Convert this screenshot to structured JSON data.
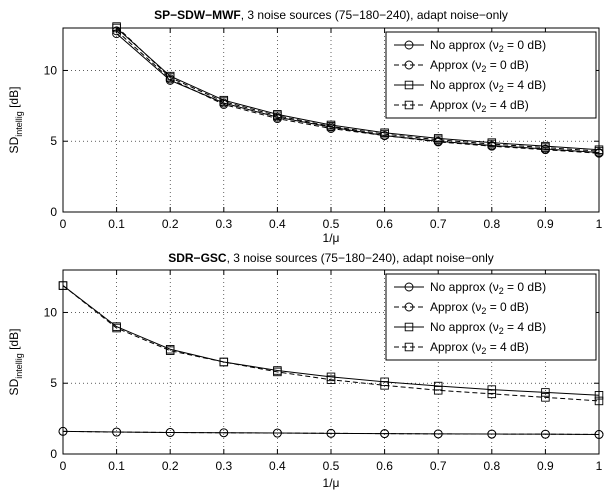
{
  "chart_data": [
    {
      "type": "line",
      "title_bold": "SP−SDW−MWF",
      "title_rest": ", 3 noise sources (75−180−240), adapt noise−only",
      "xlabel": "1/μ",
      "ylabel_main": "SD",
      "ylabel_sub": "intellig",
      "ylabel_unit": " [dB]",
      "xlim": [
        0,
        1
      ],
      "ylim": [
        0,
        13
      ],
      "xticks": [
        0,
        0.1,
        0.2,
        0.3,
        0.4,
        0.5,
        0.6,
        0.7,
        0.8,
        0.9,
        1
      ],
      "xtick_labels": [
        "0",
        "0.1",
        "0.2",
        "0.3",
        "0.4",
        "0.5",
        "0.6",
        "0.7",
        "0.8",
        "0.9",
        "1"
      ],
      "yticks": [
        0,
        5,
        10
      ],
      "ytick_labels": [
        "0",
        "5",
        "10"
      ],
      "grid": true,
      "legend_position": "top-right",
      "x": [
        0.1,
        0.2,
        0.3,
        0.4,
        0.5,
        0.6,
        0.7,
        0.8,
        0.9,
        1.0
      ],
      "series": [
        {
          "name_pre": "No approx (ν",
          "name_sub": "2",
          "name_post": " = 0 dB)",
          "marker": "circle",
          "dash": false,
          "values": [
            12.6,
            9.3,
            7.7,
            6.7,
            6.0,
            5.4,
            5.0,
            4.7,
            4.45,
            4.2
          ]
        },
        {
          "name_pre": "Approx (ν",
          "name_sub": "2",
          "name_post": " = 0 dB)",
          "marker": "circle",
          "dash": true,
          "values": [
            12.8,
            9.4,
            7.6,
            6.6,
            5.9,
            5.4,
            4.95,
            4.65,
            4.4,
            4.15
          ]
        },
        {
          "name_pre": "No approx (ν",
          "name_sub": "2",
          "name_post": " = 4 dB)",
          "marker": "square",
          "dash": false,
          "values": [
            13.0,
            9.6,
            7.9,
            6.9,
            6.15,
            5.6,
            5.2,
            4.9,
            4.65,
            4.4
          ]
        },
        {
          "name_pre": "Approx (ν",
          "name_sub": "2",
          "name_post": " = 4 dB)",
          "marker": "square",
          "dash": true,
          "values": [
            13.1,
            9.5,
            7.8,
            6.8,
            6.05,
            5.5,
            5.1,
            4.8,
            4.55,
            4.3
          ]
        }
      ]
    },
    {
      "type": "line",
      "title_bold": "SDR−GSC",
      "title_rest": ", 3 noise sources (75−180−240), adapt noise−only",
      "xlabel": "1/μ",
      "ylabel_main": "SD",
      "ylabel_sub": "intellig",
      "ylabel_unit": " [dB]",
      "xlim": [
        0,
        1
      ],
      "ylim": [
        0,
        13
      ],
      "xticks": [
        0,
        0.1,
        0.2,
        0.3,
        0.4,
        0.5,
        0.6,
        0.7,
        0.8,
        0.9,
        1
      ],
      "xtick_labels": [
        "0",
        "0.1",
        "0.2",
        "0.3",
        "0.4",
        "0.5",
        "0.6",
        "0.7",
        "0.8",
        "0.9",
        "1"
      ],
      "yticks": [
        0,
        5,
        10
      ],
      "ytick_labels": [
        "0",
        "5",
        "10"
      ],
      "grid": true,
      "legend_position": "top-right",
      "x": [
        0,
        0.1,
        0.2,
        0.3,
        0.4,
        0.5,
        0.6,
        0.7,
        0.8,
        0.9,
        1.0
      ],
      "series": [
        {
          "name_pre": "No approx (ν",
          "name_sub": "2",
          "name_post": " = 0 dB)",
          "marker": "circle",
          "dash": false,
          "values": [
            1.6,
            1.55,
            1.52,
            1.5,
            1.48,
            1.46,
            1.44,
            1.42,
            1.41,
            1.4,
            1.38
          ]
        },
        {
          "name_pre": "Approx (ν",
          "name_sub": "2",
          "name_post": " = 0 dB)",
          "marker": "circle",
          "dash": true,
          "values": [
            1.6,
            1.55,
            1.52,
            1.5,
            1.48,
            1.46,
            1.44,
            1.42,
            1.41,
            1.4,
            1.38
          ]
        },
        {
          "name_pre": "No approx (ν",
          "name_sub": "2",
          "name_post": " = 4 dB)",
          "marker": "square",
          "dash": false,
          "values": [
            11.9,
            9.0,
            7.4,
            6.5,
            5.9,
            5.45,
            5.1,
            4.8,
            4.55,
            4.35,
            4.15
          ]
        },
        {
          "name_pre": "Approx (ν",
          "name_sub": "2",
          "name_post": " = 4 dB)",
          "marker": "square",
          "dash": true,
          "values": [
            11.9,
            8.9,
            7.3,
            6.5,
            5.8,
            5.25,
            4.85,
            4.5,
            4.25,
            4.0,
            3.75
          ]
        }
      ]
    }
  ]
}
